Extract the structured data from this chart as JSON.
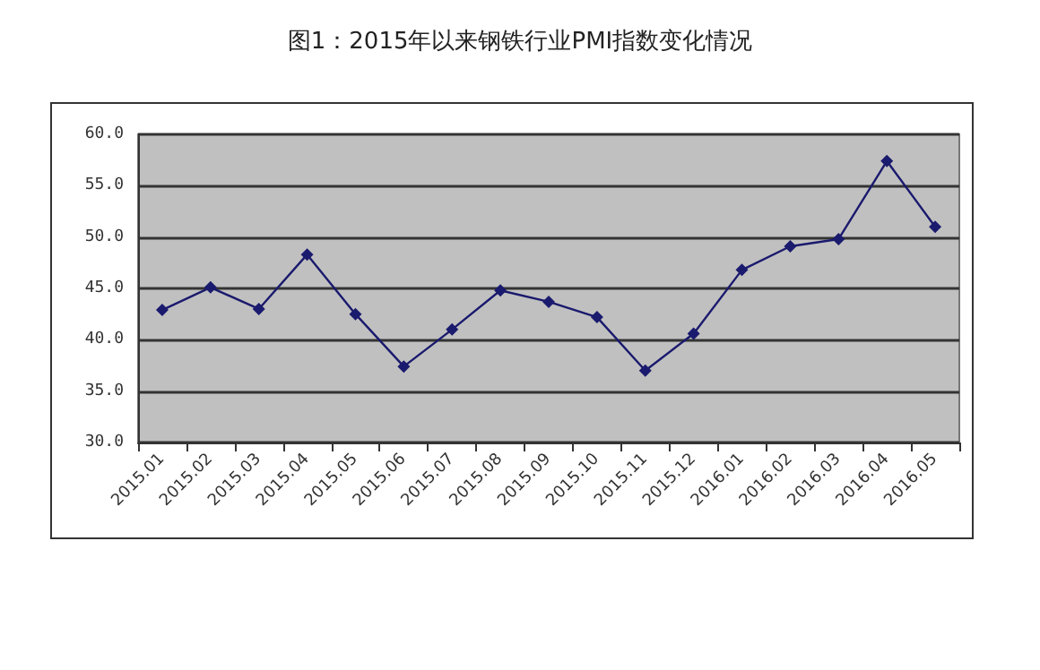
{
  "chart_data": {
    "type": "line",
    "title": "图1：2015年以来钢铁行业PMI指数变化情况",
    "categories": [
      "2015.01",
      "2015.02",
      "2015.03",
      "2015.04",
      "2015.05",
      "2015.06",
      "2015.07",
      "2015.08",
      "2015.09",
      "2015.10",
      "2015.11",
      "2015.12",
      "2016.01",
      "2016.02",
      "2016.03",
      "2016.04",
      "2016.05"
    ],
    "series": [
      {
        "color": "#1a1a6e",
        "values": [
          42.9,
          45.1,
          43.0,
          48.3,
          42.5,
          37.4,
          41.0,
          44.8,
          43.7,
          42.2,
          37.0,
          40.6,
          46.8,
          49.1,
          49.8,
          57.4,
          51.0
        ]
      }
    ],
    "ylim": [
      30,
      60
    ],
    "yticks": [
      {
        "value": 30,
        "label": "30.0"
      },
      {
        "value": 35,
        "label": "35.0"
      },
      {
        "value": 40,
        "label": "40.0"
      },
      {
        "value": 45,
        "label": "45.0"
      },
      {
        "value": 50,
        "label": "50.0"
      },
      {
        "value": 55,
        "label": "55.0"
      },
      {
        "value": 60,
        "label": "60.0"
      }
    ],
    "grid": "y",
    "marker": "diamond",
    "line_style": "solid"
  }
}
